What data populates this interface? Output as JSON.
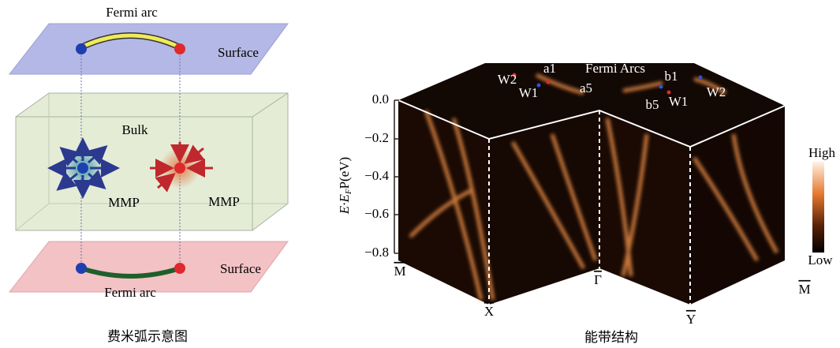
{
  "left_panel": {
    "top_arc_label": "Fermi arc",
    "top_surface_label": "Surface",
    "bulk_label": "Bulk",
    "monopole_labels": [
      "MMP",
      "MMP"
    ],
    "bottom_surface_label": "Surface",
    "bottom_arc_label": "Fermi arc",
    "caption": "费米弧示意图"
  },
  "right_panel": {
    "y_axis_label": {
      "main": "E·E",
      "sub": "F",
      "rest": "P(eV)"
    },
    "y_tick_labels": [
      "0.0",
      "−0.2",
      "−0.4",
      "−0.6",
      "−0.8"
    ],
    "k_labels": [
      "M",
      "X",
      "Γ",
      "Y",
      "M"
    ],
    "point_labels": [
      "W2",
      "a1",
      "W1",
      "a5",
      "Fermi Arcs",
      "b1",
      "W2",
      "b5",
      "W1"
    ],
    "colorbar_labels": {
      "high": "High",
      "low": "Low"
    },
    "caption": "能带结构"
  }
}
